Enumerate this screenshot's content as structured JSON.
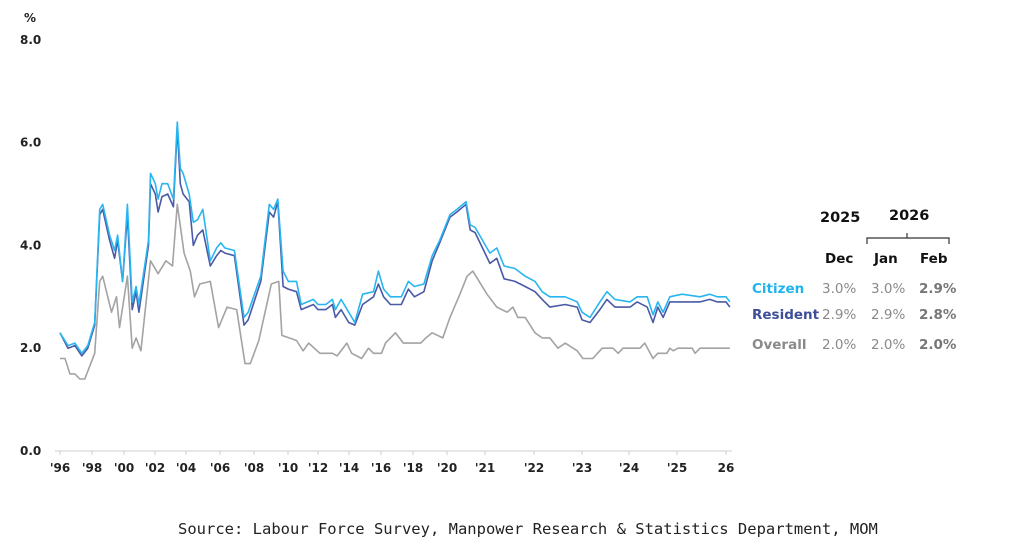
{
  "chart_data": {
    "type": "line",
    "ylabel": "%",
    "ylim": [
      0,
      8
    ],
    "yticks": [
      "0.0",
      "2.0",
      "4.0",
      "6.0",
      "8.0"
    ],
    "xticks": [
      "'96",
      "'98",
      "'00",
      "'02",
      "'04",
      "'06",
      "'08",
      "'10",
      "'12",
      "'14",
      "'16",
      "'18",
      "'20",
      "'21",
      "'22",
      "'23",
      "'24",
      "'25",
      "26"
    ],
    "xtick_years": [
      1996,
      1998,
      2000,
      2002,
      2004,
      2006,
      2008,
      2010,
      2012,
      2014,
      2016,
      2018,
      2020,
      2021,
      2022,
      2023,
      2024,
      2025,
      2026
    ],
    "grid": false,
    "colors": {
      "Citizen": "#29b6f0",
      "Resident": "#4a5aa6",
      "Overall": "#a3a3a3"
    },
    "series": [
      {
        "name": "Citizen",
        "points": [
          [
            1996.0,
            2.3
          ],
          [
            1996.5,
            2.05
          ],
          [
            1996.93,
            2.1
          ],
          [
            1997.36,
            1.9
          ],
          [
            1997.74,
            2.05
          ],
          [
            1998.17,
            2.5
          ],
          [
            1998.48,
            4.7
          ],
          [
            1998.67,
            4.8
          ],
          [
            1999.1,
            4.2
          ],
          [
            1999.41,
            3.9
          ],
          [
            1999.6,
            4.2
          ],
          [
            1999.91,
            3.3
          ],
          [
            2000.22,
            4.8
          ],
          [
            2000.53,
            2.9
          ],
          [
            2000.78,
            3.2
          ],
          [
            2000.96,
            2.85
          ],
          [
            2001.58,
            4.1
          ],
          [
            2001.71,
            5.4
          ],
          [
            2002.02,
            5.2
          ],
          [
            2002.2,
            4.9
          ],
          [
            2002.45,
            5.2
          ],
          [
            2002.82,
            5.2
          ],
          [
            2003.19,
            4.9
          ],
          [
            2003.44,
            6.4
          ],
          [
            2003.63,
            5.5
          ],
          [
            2003.81,
            5.4
          ],
          [
            2004.19,
            5.0
          ],
          [
            2004.43,
            4.45
          ],
          [
            2004.68,
            4.5
          ],
          [
            2004.99,
            4.7
          ],
          [
            2005.43,
            3.7
          ],
          [
            2005.8,
            3.95
          ],
          [
            2006.05,
            4.05
          ],
          [
            2006.29,
            3.95
          ],
          [
            2006.85,
            3.9
          ],
          [
            2007.41,
            2.6
          ],
          [
            2007.66,
            2.7
          ],
          [
            2008.4,
            3.4
          ],
          [
            2008.9,
            4.8
          ],
          [
            2009.15,
            4.7
          ],
          [
            2009.4,
            4.9
          ],
          [
            2009.71,
            3.5
          ],
          [
            2010.02,
            3.3
          ],
          [
            2010.57,
            3.3
          ],
          [
            2010.88,
            2.85
          ],
          [
            2011.69,
            2.95
          ],
          [
            2012.0,
            2.85
          ],
          [
            2012.5,
            2.85
          ],
          [
            2012.93,
            2.95
          ],
          [
            2013.12,
            2.75
          ],
          [
            2013.49,
            2.95
          ],
          [
            2013.98,
            2.7
          ],
          [
            2014.36,
            2.5
          ],
          [
            2014.85,
            3.05
          ],
          [
            2015.53,
            3.1
          ],
          [
            2015.84,
            3.5
          ],
          [
            2016.16,
            3.15
          ],
          [
            2016.59,
            3.0
          ],
          [
            2017.27,
            3.0
          ],
          [
            2017.71,
            3.3
          ],
          [
            2018.08,
            3.2
          ],
          [
            2018.64,
            3.25
          ],
          [
            2019.13,
            3.8
          ],
          [
            2019.57,
            4.1
          ],
          [
            2020.08,
            4.6
          ],
          [
            2020.26,
            4.7
          ],
          [
            2020.5,
            4.85
          ],
          [
            2020.61,
            4.4
          ],
          [
            2020.74,
            4.35
          ],
          [
            2021.1,
            3.85
          ],
          [
            2021.24,
            3.95
          ],
          [
            2021.39,
            3.6
          ],
          [
            2021.61,
            3.55
          ],
          [
            2021.82,
            3.4
          ],
          [
            2022.02,
            3.3
          ],
          [
            2022.17,
            3.1
          ],
          [
            2022.33,
            3.0
          ],
          [
            2022.65,
            3.0
          ],
          [
            2022.9,
            2.9
          ],
          [
            2023.0,
            2.7
          ],
          [
            2023.17,
            2.6
          ],
          [
            2023.38,
            2.9
          ],
          [
            2023.53,
            3.1
          ],
          [
            2023.7,
            2.95
          ],
          [
            2024.02,
            2.9
          ],
          [
            2024.17,
            3.0
          ],
          [
            2024.38,
            3.0
          ],
          [
            2024.5,
            2.65
          ],
          [
            2024.6,
            2.9
          ],
          [
            2024.71,
            2.7
          ],
          [
            2024.85,
            3.0
          ],
          [
            2025.1,
            3.05
          ],
          [
            2025.47,
            3.0
          ],
          [
            2025.67,
            3.05
          ],
          [
            2025.82,
            3.0
          ],
          [
            2026.0,
            3.0
          ],
          [
            2026.08,
            2.9
          ]
        ]
      },
      {
        "name": "Resident",
        "points": [
          [
            1996.0,
            2.3
          ],
          [
            1996.5,
            2.0
          ],
          [
            1996.93,
            2.05
          ],
          [
            1997.36,
            1.85
          ],
          [
            1997.74,
            2.0
          ],
          [
            1998.17,
            2.45
          ],
          [
            1998.48,
            4.6
          ],
          [
            1998.67,
            4.7
          ],
          [
            1999.1,
            4.1
          ],
          [
            1999.41,
            3.75
          ],
          [
            1999.6,
            4.1
          ],
          [
            1999.91,
            3.3
          ],
          [
            2000.22,
            4.6
          ],
          [
            2000.53,
            2.75
          ],
          [
            2000.78,
            3.1
          ],
          [
            2000.96,
            2.7
          ],
          [
            2001.58,
            4.0
          ],
          [
            2001.71,
            5.2
          ],
          [
            2002.02,
            5.0
          ],
          [
            2002.2,
            4.65
          ],
          [
            2002.45,
            4.95
          ],
          [
            2002.82,
            5.0
          ],
          [
            2003.19,
            4.75
          ],
          [
            2003.44,
            6.3
          ],
          [
            2003.63,
            5.2
          ],
          [
            2003.81,
            5.0
          ],
          [
            2004.19,
            4.85
          ],
          [
            2004.43,
            4.0
          ],
          [
            2004.68,
            4.2
          ],
          [
            2004.99,
            4.3
          ],
          [
            2005.43,
            3.6
          ],
          [
            2005.8,
            3.8
          ],
          [
            2006.05,
            3.9
          ],
          [
            2006.29,
            3.85
          ],
          [
            2006.85,
            3.8
          ],
          [
            2007.41,
            2.45
          ],
          [
            2007.66,
            2.55
          ],
          [
            2008.4,
            3.3
          ],
          [
            2008.9,
            4.65
          ],
          [
            2009.15,
            4.55
          ],
          [
            2009.4,
            4.85
          ],
          [
            2009.71,
            3.2
          ],
          [
            2010.02,
            3.15
          ],
          [
            2010.57,
            3.1
          ],
          [
            2010.88,
            2.75
          ],
          [
            2011.69,
            2.85
          ],
          [
            2012.0,
            2.75
          ],
          [
            2012.5,
            2.75
          ],
          [
            2012.93,
            2.85
          ],
          [
            2013.12,
            2.6
          ],
          [
            2013.49,
            2.75
          ],
          [
            2013.98,
            2.5
          ],
          [
            2014.36,
            2.45
          ],
          [
            2014.85,
            2.85
          ],
          [
            2015.53,
            3.0
          ],
          [
            2015.84,
            3.25
          ],
          [
            2016.16,
            3.0
          ],
          [
            2016.59,
            2.85
          ],
          [
            2017.27,
            2.85
          ],
          [
            2017.71,
            3.15
          ],
          [
            2018.08,
            3.0
          ],
          [
            2018.64,
            3.1
          ],
          [
            2019.13,
            3.7
          ],
          [
            2019.57,
            4.05
          ],
          [
            2020.08,
            4.55
          ],
          [
            2020.26,
            4.65
          ],
          [
            2020.5,
            4.8
          ],
          [
            2020.61,
            4.3
          ],
          [
            2020.74,
            4.25
          ],
          [
            2021.1,
            3.65
          ],
          [
            2021.24,
            3.75
          ],
          [
            2021.39,
            3.35
          ],
          [
            2021.61,
            3.3
          ],
          [
            2021.82,
            3.2
          ],
          [
            2022.02,
            3.1
          ],
          [
            2022.17,
            2.95
          ],
          [
            2022.33,
            2.8
          ],
          [
            2022.65,
            2.85
          ],
          [
            2022.9,
            2.8
          ],
          [
            2023.0,
            2.55
          ],
          [
            2023.17,
            2.5
          ],
          [
            2023.38,
            2.75
          ],
          [
            2023.53,
            2.95
          ],
          [
            2023.7,
            2.8
          ],
          [
            2024.02,
            2.8
          ],
          [
            2024.17,
            2.9
          ],
          [
            2024.38,
            2.8
          ],
          [
            2024.5,
            2.5
          ],
          [
            2024.6,
            2.8
          ],
          [
            2024.71,
            2.6
          ],
          [
            2024.85,
            2.9
          ],
          [
            2025.1,
            2.9
          ],
          [
            2025.47,
            2.9
          ],
          [
            2025.67,
            2.95
          ],
          [
            2025.82,
            2.9
          ],
          [
            2026.0,
            2.9
          ],
          [
            2026.08,
            2.8
          ]
        ]
      },
      {
        "name": "Overall",
        "points": [
          [
            1996.0,
            1.8
          ],
          [
            1996.31,
            1.8
          ],
          [
            1996.62,
            1.5
          ],
          [
            1996.93,
            1.5
          ],
          [
            1997.24,
            1.4
          ],
          [
            1997.55,
            1.4
          ],
          [
            1998.17,
            1.9
          ],
          [
            1998.48,
            3.3
          ],
          [
            1998.67,
            3.4
          ],
          [
            1999.22,
            2.7
          ],
          [
            1999.53,
            3.0
          ],
          [
            1999.72,
            2.4
          ],
          [
            2000.22,
            3.4
          ],
          [
            2000.53,
            2.0
          ],
          [
            2000.78,
            2.2
          ],
          [
            2001.09,
            1.95
          ],
          [
            2001.71,
            3.7
          ],
          [
            2002.2,
            3.45
          ],
          [
            2002.7,
            3.7
          ],
          [
            2003.13,
            3.6
          ],
          [
            2003.44,
            4.8
          ],
          [
            2003.88,
            3.85
          ],
          [
            2004.25,
            3.5
          ],
          [
            2004.5,
            3.0
          ],
          [
            2004.81,
            3.25
          ],
          [
            2005.43,
            3.3
          ],
          [
            2005.92,
            2.4
          ],
          [
            2006.42,
            2.8
          ],
          [
            2006.98,
            2.75
          ],
          [
            2007.47,
            1.7
          ],
          [
            2007.78,
            1.7
          ],
          [
            2008.28,
            2.15
          ],
          [
            2009.02,
            3.25
          ],
          [
            2009.46,
            3.3
          ],
          [
            2009.64,
            2.25
          ],
          [
            2010.57,
            2.15
          ],
          [
            2011.01,
            1.95
          ],
          [
            2011.38,
            2.1
          ],
          [
            2012.12,
            1.9
          ],
          [
            2012.93,
            1.9
          ],
          [
            2013.24,
            1.85
          ],
          [
            2013.86,
            2.1
          ],
          [
            2014.17,
            1.9
          ],
          [
            2014.79,
            1.8
          ],
          [
            2015.22,
            2.0
          ],
          [
            2015.53,
            1.9
          ],
          [
            2016.03,
            1.9
          ],
          [
            2016.28,
            2.1
          ],
          [
            2016.9,
            2.3
          ],
          [
            2017.4,
            2.1
          ],
          [
            2018.45,
            2.1
          ],
          [
            2018.76,
            2.2
          ],
          [
            2019.13,
            2.3
          ],
          [
            2019.75,
            2.2
          ],
          [
            2020.08,
            2.6
          ],
          [
            2020.34,
            3.05
          ],
          [
            2020.53,
            3.4
          ],
          [
            2020.68,
            3.5
          ],
          [
            2021.04,
            3.05
          ],
          [
            2021.24,
            2.8
          ],
          [
            2021.45,
            2.7
          ],
          [
            2021.57,
            2.8
          ],
          [
            2021.67,
            2.6
          ],
          [
            2021.82,
            2.6
          ],
          [
            2022.02,
            2.3
          ],
          [
            2022.17,
            2.2
          ],
          [
            2022.33,
            2.2
          ],
          [
            2022.5,
            2.0
          ],
          [
            2022.65,
            2.1
          ],
          [
            2022.9,
            1.95
          ],
          [
            2023.02,
            1.8
          ],
          [
            2023.23,
            1.8
          ],
          [
            2023.43,
            2.0
          ],
          [
            2023.66,
            2.0
          ],
          [
            2023.77,
            1.9
          ],
          [
            2023.87,
            2.0
          ],
          [
            2024.23,
            2.0
          ],
          [
            2024.33,
            2.1
          ],
          [
            2024.5,
            1.8
          ],
          [
            2024.6,
            1.9
          ],
          [
            2024.79,
            1.9
          ],
          [
            2024.85,
            2.0
          ],
          [
            2024.92,
            1.95
          ],
          [
            2025.02,
            2.0
          ],
          [
            2025.31,
            2.0
          ],
          [
            2025.37,
            1.9
          ],
          [
            2025.47,
            2.0
          ],
          [
            2026.08,
            2.0
          ]
        ]
      }
    ]
  },
  "table": {
    "year1": "2025",
    "year2": "2026",
    "months": [
      "Dec",
      "Jan",
      "Feb"
    ],
    "rows": [
      {
        "label": "Citizen",
        "color": "#1fb4ec",
        "values": [
          "3.0%",
          "3.0%",
          "2.9%"
        ]
      },
      {
        "label": "Resident",
        "color": "#3e4e98",
        "values": [
          "2.9%",
          "2.9%",
          "2.8%"
        ]
      },
      {
        "label": "Overall",
        "color": "#8a8a8a",
        "values": [
          "2.0%",
          "2.0%",
          "2.0%"
        ]
      }
    ]
  },
  "source": "Source: Labour Force Survey, Manpower Research & Statistics Department, MOM"
}
